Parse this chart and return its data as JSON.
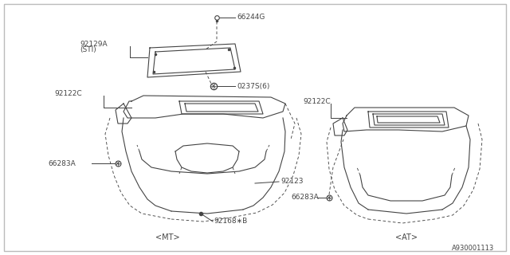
{
  "bg_color": "#ffffff",
  "border_color": "#bbbbbb",
  "line_color": "#444444",
  "diagram_id": "A930001113",
  "mt_label": "<MT>",
  "at_label": "<AT>",
  "font_size_label": 6.5,
  "font_size_caption": 7.0,
  "font_size_id": 6.0,
  "lw": 0.8
}
